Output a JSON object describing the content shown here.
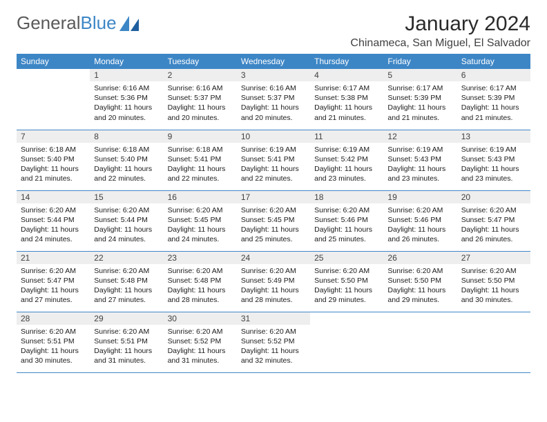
{
  "logo": {
    "text1": "General",
    "text2": "Blue"
  },
  "title": "January 2024",
  "location": "Chinameca, San Miguel, El Salvador",
  "weekdays": [
    "Sunday",
    "Monday",
    "Tuesday",
    "Wednesday",
    "Thursday",
    "Friday",
    "Saturday"
  ],
  "colors": {
    "header_bg": "#3d86c6",
    "header_fg": "#ffffff",
    "daynum_bg": "#eeeeee",
    "rule": "#3d86c6"
  },
  "weeks": [
    [
      {
        "n": "",
        "sr": "",
        "ss": "",
        "dl": ""
      },
      {
        "n": "1",
        "sr": "Sunrise: 6:16 AM",
        "ss": "Sunset: 5:36 PM",
        "dl": "Daylight: 11 hours and 20 minutes."
      },
      {
        "n": "2",
        "sr": "Sunrise: 6:16 AM",
        "ss": "Sunset: 5:37 PM",
        "dl": "Daylight: 11 hours and 20 minutes."
      },
      {
        "n": "3",
        "sr": "Sunrise: 6:16 AM",
        "ss": "Sunset: 5:37 PM",
        "dl": "Daylight: 11 hours and 20 minutes."
      },
      {
        "n": "4",
        "sr": "Sunrise: 6:17 AM",
        "ss": "Sunset: 5:38 PM",
        "dl": "Daylight: 11 hours and 21 minutes."
      },
      {
        "n": "5",
        "sr": "Sunrise: 6:17 AM",
        "ss": "Sunset: 5:39 PM",
        "dl": "Daylight: 11 hours and 21 minutes."
      },
      {
        "n": "6",
        "sr": "Sunrise: 6:17 AM",
        "ss": "Sunset: 5:39 PM",
        "dl": "Daylight: 11 hours and 21 minutes."
      }
    ],
    [
      {
        "n": "7",
        "sr": "Sunrise: 6:18 AM",
        "ss": "Sunset: 5:40 PM",
        "dl": "Daylight: 11 hours and 21 minutes."
      },
      {
        "n": "8",
        "sr": "Sunrise: 6:18 AM",
        "ss": "Sunset: 5:40 PM",
        "dl": "Daylight: 11 hours and 22 minutes."
      },
      {
        "n": "9",
        "sr": "Sunrise: 6:18 AM",
        "ss": "Sunset: 5:41 PM",
        "dl": "Daylight: 11 hours and 22 minutes."
      },
      {
        "n": "10",
        "sr": "Sunrise: 6:19 AM",
        "ss": "Sunset: 5:41 PM",
        "dl": "Daylight: 11 hours and 22 minutes."
      },
      {
        "n": "11",
        "sr": "Sunrise: 6:19 AM",
        "ss": "Sunset: 5:42 PM",
        "dl": "Daylight: 11 hours and 23 minutes."
      },
      {
        "n": "12",
        "sr": "Sunrise: 6:19 AM",
        "ss": "Sunset: 5:43 PM",
        "dl": "Daylight: 11 hours and 23 minutes."
      },
      {
        "n": "13",
        "sr": "Sunrise: 6:19 AM",
        "ss": "Sunset: 5:43 PM",
        "dl": "Daylight: 11 hours and 23 minutes."
      }
    ],
    [
      {
        "n": "14",
        "sr": "Sunrise: 6:20 AM",
        "ss": "Sunset: 5:44 PM",
        "dl": "Daylight: 11 hours and 24 minutes."
      },
      {
        "n": "15",
        "sr": "Sunrise: 6:20 AM",
        "ss": "Sunset: 5:44 PM",
        "dl": "Daylight: 11 hours and 24 minutes."
      },
      {
        "n": "16",
        "sr": "Sunrise: 6:20 AM",
        "ss": "Sunset: 5:45 PM",
        "dl": "Daylight: 11 hours and 24 minutes."
      },
      {
        "n": "17",
        "sr": "Sunrise: 6:20 AM",
        "ss": "Sunset: 5:45 PM",
        "dl": "Daylight: 11 hours and 25 minutes."
      },
      {
        "n": "18",
        "sr": "Sunrise: 6:20 AM",
        "ss": "Sunset: 5:46 PM",
        "dl": "Daylight: 11 hours and 25 minutes."
      },
      {
        "n": "19",
        "sr": "Sunrise: 6:20 AM",
        "ss": "Sunset: 5:46 PM",
        "dl": "Daylight: 11 hours and 26 minutes."
      },
      {
        "n": "20",
        "sr": "Sunrise: 6:20 AM",
        "ss": "Sunset: 5:47 PM",
        "dl": "Daylight: 11 hours and 26 minutes."
      }
    ],
    [
      {
        "n": "21",
        "sr": "Sunrise: 6:20 AM",
        "ss": "Sunset: 5:47 PM",
        "dl": "Daylight: 11 hours and 27 minutes."
      },
      {
        "n": "22",
        "sr": "Sunrise: 6:20 AM",
        "ss": "Sunset: 5:48 PM",
        "dl": "Daylight: 11 hours and 27 minutes."
      },
      {
        "n": "23",
        "sr": "Sunrise: 6:20 AM",
        "ss": "Sunset: 5:48 PM",
        "dl": "Daylight: 11 hours and 28 minutes."
      },
      {
        "n": "24",
        "sr": "Sunrise: 6:20 AM",
        "ss": "Sunset: 5:49 PM",
        "dl": "Daylight: 11 hours and 28 minutes."
      },
      {
        "n": "25",
        "sr": "Sunrise: 6:20 AM",
        "ss": "Sunset: 5:50 PM",
        "dl": "Daylight: 11 hours and 29 minutes."
      },
      {
        "n": "26",
        "sr": "Sunrise: 6:20 AM",
        "ss": "Sunset: 5:50 PM",
        "dl": "Daylight: 11 hours and 29 minutes."
      },
      {
        "n": "27",
        "sr": "Sunrise: 6:20 AM",
        "ss": "Sunset: 5:50 PM",
        "dl": "Daylight: 11 hours and 30 minutes."
      }
    ],
    [
      {
        "n": "28",
        "sr": "Sunrise: 6:20 AM",
        "ss": "Sunset: 5:51 PM",
        "dl": "Daylight: 11 hours and 30 minutes."
      },
      {
        "n": "29",
        "sr": "Sunrise: 6:20 AM",
        "ss": "Sunset: 5:51 PM",
        "dl": "Daylight: 11 hours and 31 minutes."
      },
      {
        "n": "30",
        "sr": "Sunrise: 6:20 AM",
        "ss": "Sunset: 5:52 PM",
        "dl": "Daylight: 11 hours and 31 minutes."
      },
      {
        "n": "31",
        "sr": "Sunrise: 6:20 AM",
        "ss": "Sunset: 5:52 PM",
        "dl": "Daylight: 11 hours and 32 minutes."
      },
      {
        "n": "",
        "sr": "",
        "ss": "",
        "dl": ""
      },
      {
        "n": "",
        "sr": "",
        "ss": "",
        "dl": ""
      },
      {
        "n": "",
        "sr": "",
        "ss": "",
        "dl": ""
      }
    ]
  ]
}
